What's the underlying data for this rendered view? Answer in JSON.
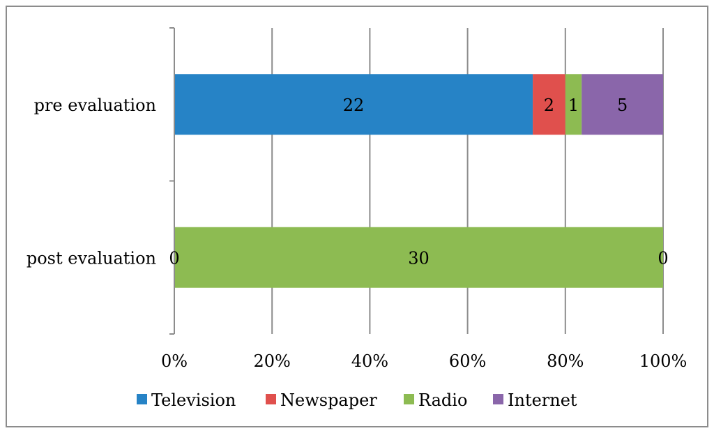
{
  "chart_data": {
    "type": "bar",
    "orientation": "horizontal",
    "stacked": "percent",
    "categories": [
      "pre evaluation",
      "post evaluation"
    ],
    "series": [
      {
        "name": "Television",
        "color": "#2683C6",
        "values": [
          22,
          0
        ]
      },
      {
        "name": "Newspaper",
        "color": "#E0504D",
        "values": [
          2,
          0
        ]
      },
      {
        "name": "Radio",
        "color": "#8DBB52",
        "values": [
          1,
          30
        ]
      },
      {
        "name": "Internet",
        "color": "#8A66AA",
        "values": [
          5,
          0
        ]
      }
    ],
    "xticks": [
      "0%",
      "20%",
      "40%",
      "60%",
      "80%",
      "100%"
    ],
    "xlim": [
      0,
      100
    ],
    "grid": true,
    "legend_position": "bottom",
    "title": "",
    "xlabel": "",
    "ylabel": ""
  }
}
